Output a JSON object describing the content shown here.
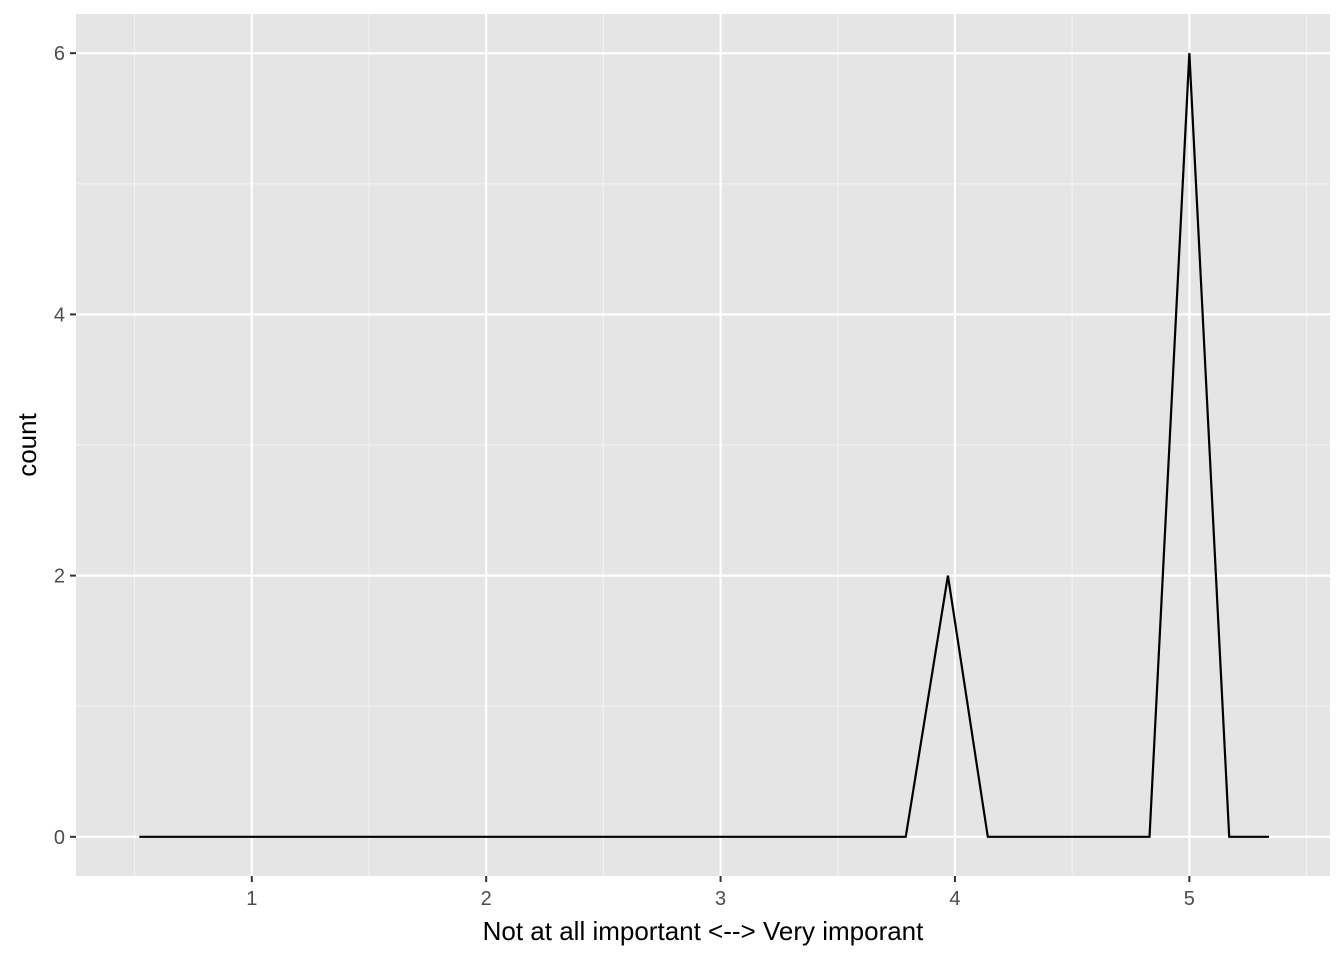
{
  "chart_data": {
    "type": "line",
    "title": "",
    "xlabel": "Not at all important <--> Very imporant",
    "ylabel": "count",
    "xlim": [
      0.25,
      5.6
    ],
    "ylim": [
      -0.3,
      6.3
    ],
    "x_ticks": [
      1,
      2,
      3,
      4,
      5
    ],
    "x_tick_labels": [
      "1",
      "2",
      "3",
      "4",
      "5"
    ],
    "x_minor_ticks": [
      0.5,
      1.5,
      2.5,
      3.5,
      4.5,
      5.5
    ],
    "y_ticks": [
      0,
      2,
      4,
      6
    ],
    "y_tick_labels": [
      "0",
      "2",
      "4",
      "6"
    ],
    "y_minor_ticks": [
      1,
      3,
      5
    ],
    "grid": true,
    "series": [
      {
        "x": [
          0.52,
          3.79,
          3.97,
          4.14,
          4.83,
          5.0,
          5.17,
          5.34
        ],
        "y": [
          0,
          0,
          2,
          0,
          0,
          6,
          0,
          0
        ]
      }
    ],
    "colors": {
      "panel_background": "#E5E5E5",
      "grid_major": "#FFFFFF",
      "grid_minor": "#F2F2F2",
      "line": "#000000",
      "tick_label": "#4D4D4D",
      "tick_mark": "#333333"
    }
  }
}
